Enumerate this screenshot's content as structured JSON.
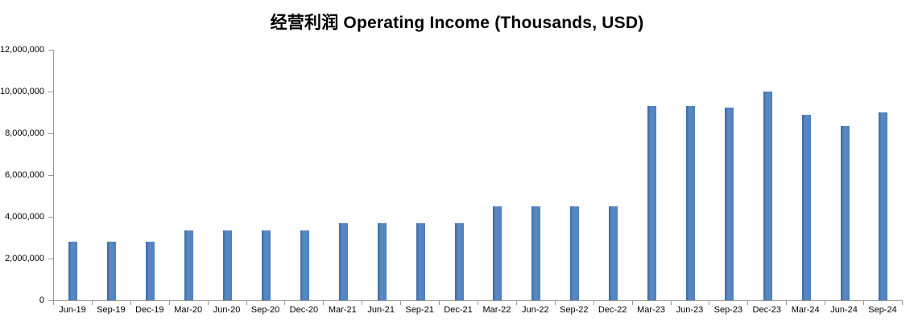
{
  "chart_data": {
    "type": "bar",
    "title": "经营利润 Operating Income (Thousands, USD)",
    "xlabel": "",
    "ylabel": "",
    "categories": [
      "Jun-19",
      "Sep-19",
      "Dec-19",
      "Mar-20",
      "Jun-20",
      "Sep-20",
      "Dec-20",
      "Mar-21",
      "Jun-21",
      "Sep-21",
      "Dec-21",
      "Mar-22",
      "Jun-22",
      "Sep-22",
      "Dec-22",
      "Mar-23",
      "Jun-23",
      "Sep-23",
      "Dec-23",
      "Mar-24",
      "Jun-24",
      "Sep-24"
    ],
    "values": [
      2800000,
      2800000,
      2800000,
      3350000,
      3350000,
      3350000,
      3350000,
      3700000,
      3700000,
      3700000,
      3700000,
      4500000,
      4500000,
      4500000,
      4500000,
      9300000,
      9300000,
      9250000,
      10000000,
      8900000,
      8350000,
      9000000
    ],
    "ylim": [
      0,
      12000000
    ],
    "ytick_interval": 2000000,
    "ytick_labels": [
      "0",
      "2,000,000",
      "4,000,000",
      "6,000,000",
      "8,000,000",
      "10,000,000",
      "12,000,000"
    ],
    "grid": false,
    "legend": false,
    "bar_color": "#4F81BD",
    "bar_edge_color": "#3E6FA9",
    "axis_color": "#969696",
    "text_color": "#000000"
  }
}
